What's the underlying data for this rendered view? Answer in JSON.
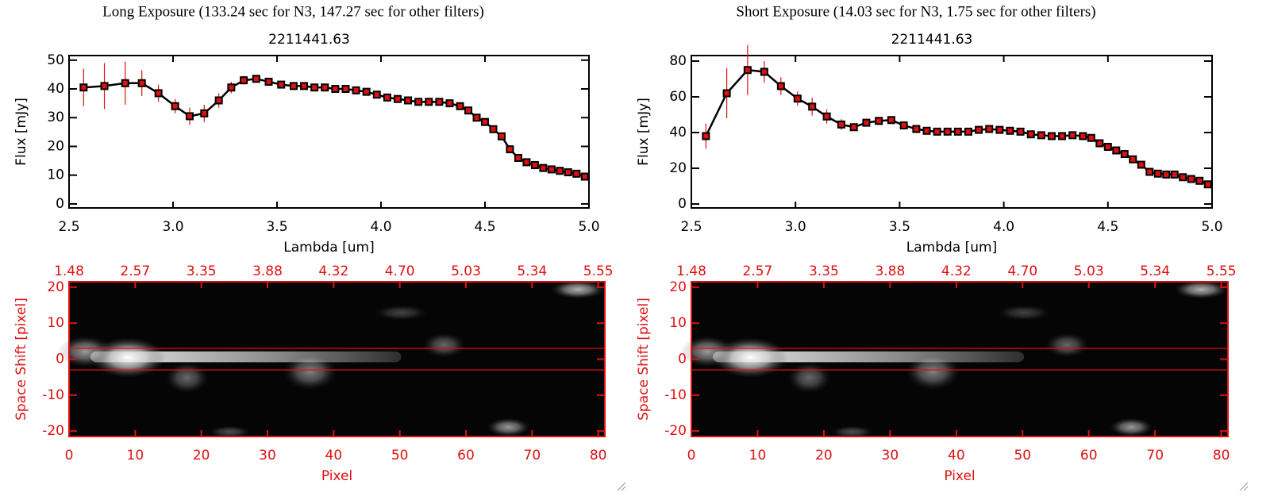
{
  "chart_data": [
    {
      "type": "line",
      "title": "Long Exposure (133.24 sec for N3, 147.27 sec for other filters)",
      "subtitle": "2211441.63",
      "x_label": "Lambda [um]",
      "y_label": "Flux [mJy]",
      "color": "#000000",
      "error_color": "#dd1111",
      "x": [
        2.57,
        2.67,
        2.77,
        2.85,
        2.93,
        3.01,
        3.08,
        3.15,
        3.22,
        3.28,
        3.34,
        3.4,
        3.46,
        3.52,
        3.58,
        3.63,
        3.68,
        3.73,
        3.78,
        3.83,
        3.88,
        3.93,
        3.98,
        4.03,
        4.08,
        4.13,
        4.18,
        4.23,
        4.28,
        4.33,
        4.38,
        4.42,
        4.46,
        4.5,
        4.54,
        4.58,
        4.62,
        4.66,
        4.7,
        4.74,
        4.78,
        4.82,
        4.86,
        4.9,
        4.94,
        4.98
      ],
      "values": [
        40.5,
        41,
        42,
        42,
        38.5,
        34,
        30.5,
        31.5,
        36,
        40.5,
        43,
        43.5,
        42.5,
        41.5,
        41,
        41,
        40.5,
        40.5,
        40,
        40,
        39.5,
        39,
        38,
        37,
        36.5,
        36,
        35.5,
        35.5,
        35.5,
        35,
        34,
        32.5,
        30,
        28.5,
        26,
        23.5,
        19,
        16,
        14.5,
        13.5,
        12.5,
        12,
        11.5,
        11,
        10.5,
        9.5
      ],
      "errors": [
        6.5,
        8,
        7.5,
        4.5,
        3,
        2.5,
        3,
        3,
        2.5,
        2,
        1.5,
        1,
        0.8,
        0.6,
        0.5,
        0.5,
        0.5,
        0.5,
        0.5,
        0.5,
        0.5,
        0.5,
        0.5,
        0.5,
        0.5,
        0.5,
        0.5,
        0.5,
        0.5,
        0.5,
        0.5,
        0.5,
        0.5,
        0.5,
        0.5,
        0.5,
        0.5,
        0.5,
        0.5,
        0.5,
        0.5,
        0.5,
        0.5,
        0.5,
        0.5,
        0.5
      ],
      "xlim": [
        2.5,
        5.0
      ],
      "xticks": [
        2.5,
        {
          "value": 3,
          "label": "3.0"
        },
        3.5,
        {
          "value": 4,
          "label": "4.0"
        },
        4.5,
        {
          "value": 5,
          "label": "5.0"
        }
      ],
      "ylim": [
        -1.4,
        51.6
      ],
      "yticks": [
        0,
        10,
        20,
        30,
        40,
        50
      ]
    },
    {
      "type": "image",
      "x_label": "Pixel",
      "y_label": "Space Shift [pixel]",
      "color": "#dd1111",
      "xlim": [
        0,
        81
      ],
      "xticks": [
        0,
        10,
        20,
        30,
        40,
        50,
        60,
        70,
        80
      ],
      "x2ticks": [
        {
          "value": 0,
          "label": "1.48"
        },
        {
          "value": 10,
          "label": "2.57"
        },
        {
          "value": 20,
          "label": "3.35"
        },
        {
          "value": 30,
          "label": "3.88"
        },
        {
          "value": 40,
          "label": "4.32"
        },
        {
          "value": 50,
          "label": "4.70"
        },
        {
          "value": 60,
          "label": "5.03"
        },
        {
          "value": 70,
          "label": "5.34"
        },
        {
          "value": 80,
          "label": "5.55"
        }
      ],
      "ylim": [
        -21.5,
        21.5
      ],
      "yticks": [
        -20,
        -10,
        0,
        10,
        20
      ],
      "hlines": [
        3,
        -3
      ]
    },
    {
      "type": "line",
      "title": "Short Exposure (14.03 sec for N3, 1.75 sec for other filters)",
      "subtitle": "2211441.63",
      "x_label": "Lambda [um]",
      "y_label": "Flux [mJy]",
      "color": "#000000",
      "error_color": "#dd1111",
      "x": [
        2.57,
        2.67,
        2.77,
        2.85,
        2.93,
        3.01,
        3.08,
        3.15,
        3.22,
        3.28,
        3.34,
        3.4,
        3.46,
        3.52,
        3.58,
        3.63,
        3.68,
        3.73,
        3.78,
        3.83,
        3.88,
        3.93,
        3.98,
        4.03,
        4.08,
        4.13,
        4.18,
        4.23,
        4.28,
        4.33,
        4.38,
        4.42,
        4.46,
        4.5,
        4.54,
        4.58,
        4.62,
        4.66,
        4.7,
        4.74,
        4.78,
        4.82,
        4.86,
        4.9,
        4.94,
        4.98
      ],
      "values": [
        38,
        62,
        75,
        74,
        66,
        59,
        54.5,
        49,
        44.5,
        43,
        45.5,
        46.5,
        47,
        44,
        42,
        41,
        40.5,
        40.5,
        40.5,
        40.5,
        41.5,
        42,
        41.5,
        41,
        40.5,
        39,
        38.5,
        38,
        38,
        38.5,
        38,
        37,
        34,
        32,
        30,
        28,
        25,
        22,
        18,
        17,
        16.5,
        16.5,
        15,
        14,
        13,
        11
      ],
      "errors": [
        7,
        14,
        14,
        6,
        5,
        4,
        5,
        4,
        3,
        2,
        2,
        1.5,
        1,
        0.8,
        0.7,
        0.7,
        0.7,
        0.7,
        0.7,
        0.7,
        0.7,
        0.7,
        0.7,
        0.7,
        0.7,
        0.7,
        0.7,
        0.7,
        0.7,
        0.7,
        0.7,
        0.7,
        0.7,
        0.7,
        0.7,
        0.7,
        0.7,
        0.7,
        0.7,
        0.7,
        0.7,
        0.7,
        0.7,
        0.7,
        0.7,
        0.7
      ],
      "xlim": [
        2.5,
        5.0
      ],
      "xticks": [
        2.5,
        {
          "value": 3,
          "label": "3.0"
        },
        3.5,
        {
          "value": 4,
          "label": "4.0"
        },
        4.5,
        {
          "value": 5,
          "label": "5.0"
        }
      ],
      "ylim": [
        -2.2,
        83.1
      ],
      "yticks": [
        0,
        20,
        40,
        60,
        80
      ]
    },
    {
      "type": "image",
      "x_label": "Pixel",
      "y_label": "Space Shift [pixel]",
      "color": "#dd1111",
      "xlim": [
        0,
        81
      ],
      "xticks": [
        0,
        10,
        20,
        30,
        40,
        50,
        60,
        70,
        80
      ],
      "x2ticks": [
        {
          "value": 0,
          "label": "1.48"
        },
        {
          "value": 10,
          "label": "2.57"
        },
        {
          "value": 20,
          "label": "3.35"
        },
        {
          "value": 30,
          "label": "3.88"
        },
        {
          "value": 40,
          "label": "4.32"
        },
        {
          "value": 50,
          "label": "4.70"
        },
        {
          "value": 60,
          "label": "5.03"
        },
        {
          "value": 70,
          "label": "5.34"
        },
        {
          "value": 80,
          "label": "5.55"
        }
      ],
      "ylim": [
        -21.5,
        21.5
      ],
      "yticks": [
        -20,
        -10,
        0,
        10,
        20
      ],
      "hlines": [
        3,
        -3
      ]
    }
  ]
}
